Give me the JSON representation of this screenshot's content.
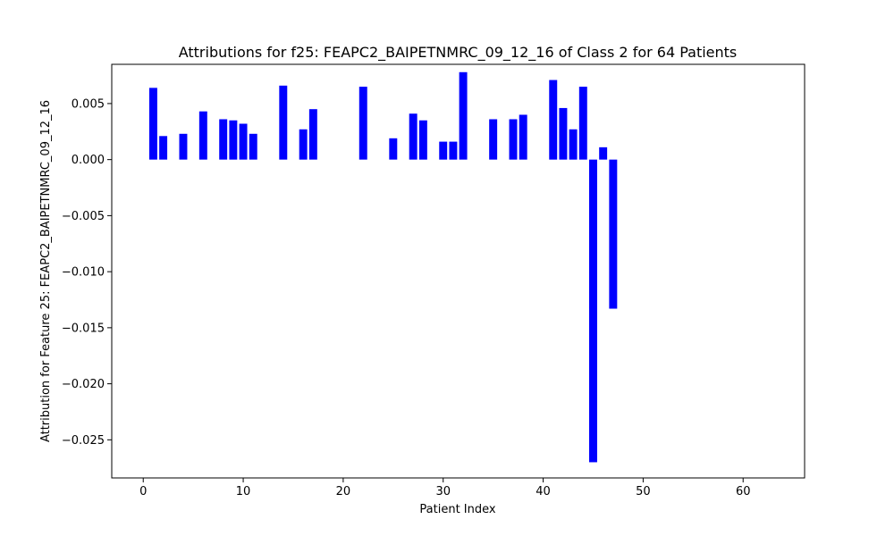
{
  "chart_data": {
    "type": "bar",
    "title": "Attributions for f25: FEAPC2_BAIPETNMRC_09_12_16 of Class 2 for 64 Patients",
    "xlabel": "Patient Index",
    "ylabel": "Attribution for Feature 25: FEAPC2_BAIPETNMRC_09_12_16",
    "xlim": [
      -3.15,
      66.15
    ],
    "ylim": [
      -0.0284,
      0.0085
    ],
    "xticks": [
      0,
      10,
      20,
      30,
      40,
      50,
      60
    ],
    "xtick_labels": [
      "0",
      "10",
      "20",
      "30",
      "40",
      "50",
      "60"
    ],
    "yticks": [
      -0.025,
      -0.02,
      -0.015,
      -0.01,
      -0.005,
      0.0,
      0.005
    ],
    "ytick_labels": [
      "−0.025",
      "−0.020",
      "−0.015",
      "−0.010",
      "−0.005",
      "0.000",
      "0.005"
    ],
    "grid": false,
    "bar_color": "#0000ff",
    "x": [
      1,
      2,
      4,
      6,
      8,
      9,
      10,
      11,
      14,
      16,
      17,
      22,
      25,
      27,
      28,
      30,
      31,
      32,
      35,
      37,
      38,
      41,
      42,
      43,
      44,
      45,
      46,
      47
    ],
    "values": [
      0.0064,
      0.0021,
      0.0023,
      0.0043,
      0.0036,
      0.0035,
      0.0032,
      0.0023,
      0.0066,
      0.0027,
      0.0045,
      0.0065,
      0.0019,
      0.0041,
      0.0035,
      0.0016,
      0.0016,
      0.0078,
      0.0036,
      0.0036,
      0.004,
      0.0071,
      0.0046,
      0.0027,
      0.0065,
      -0.027,
      0.0011,
      -0.0133
    ]
  }
}
